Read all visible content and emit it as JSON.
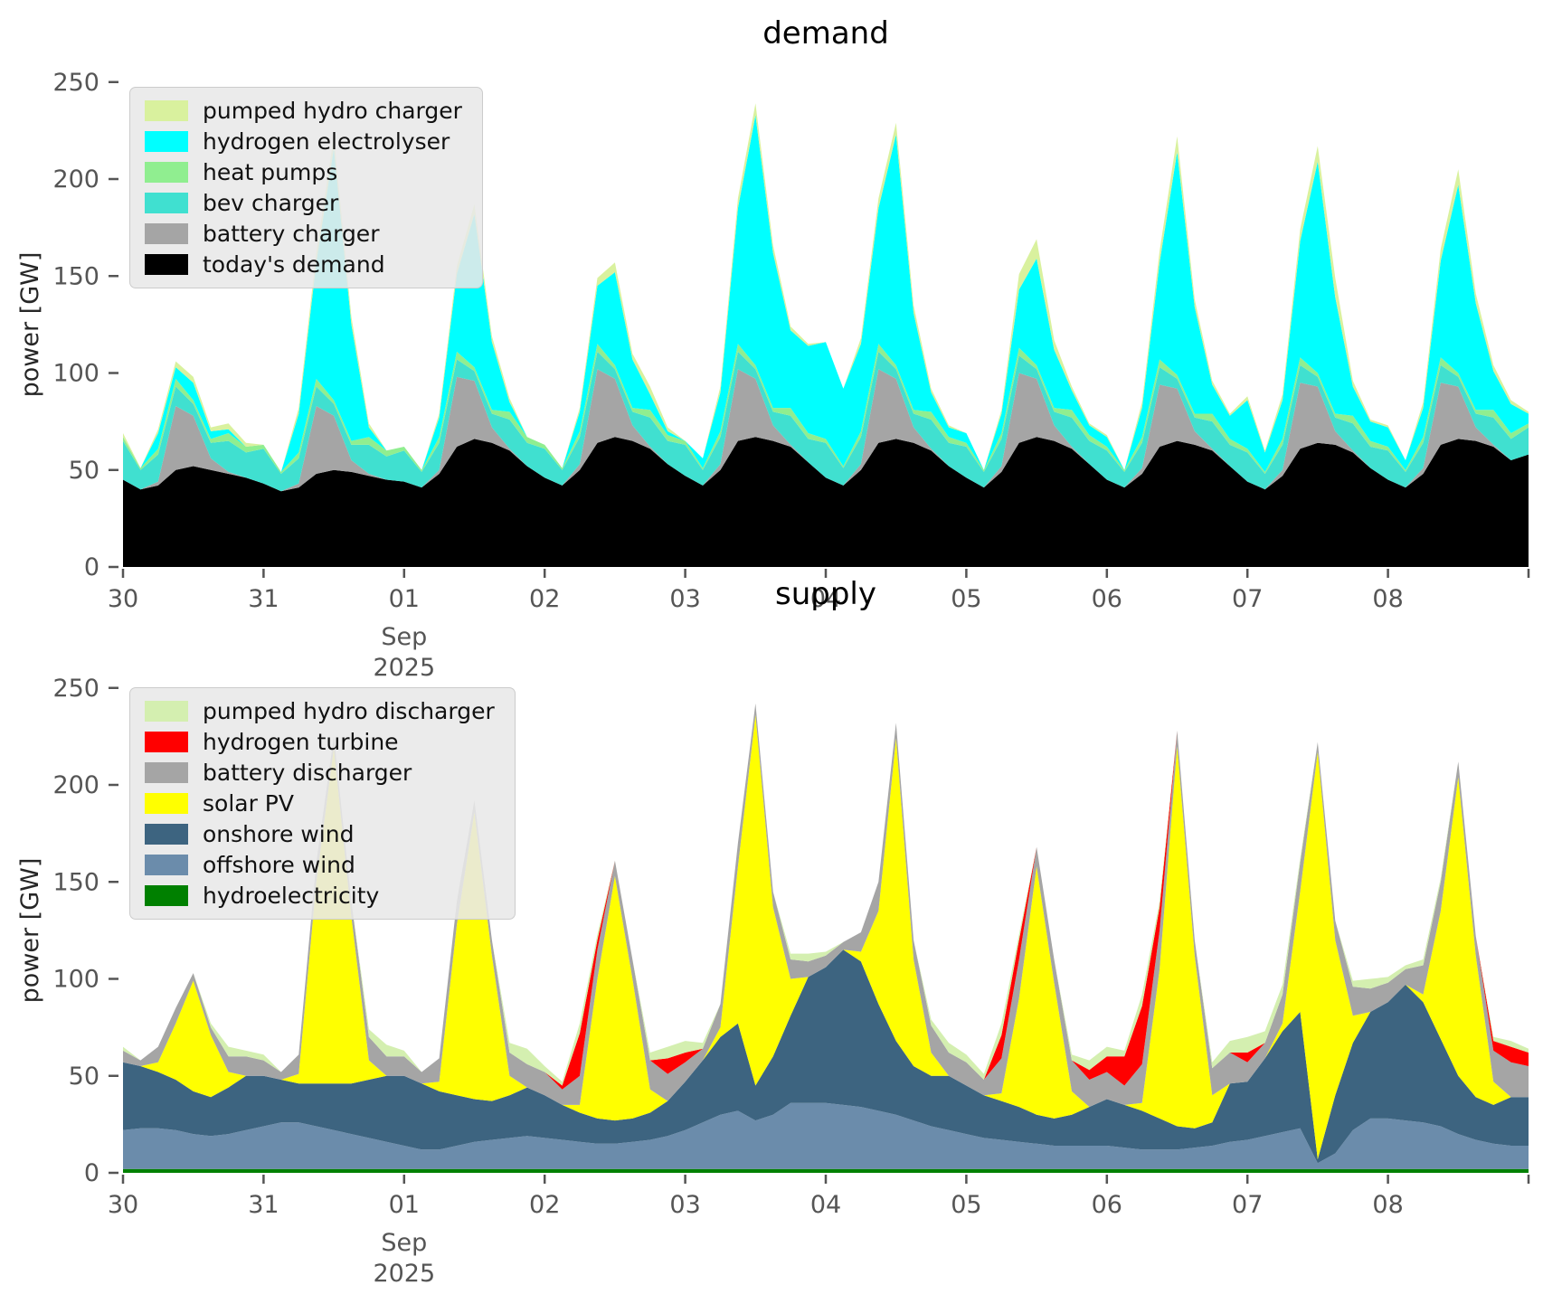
{
  "figure": {
    "background": "#ffffff"
  },
  "chart_data": [
    {
      "type": "area",
      "stacked": true,
      "title": "demand",
      "ylabel": "power [GW]",
      "x_start": "2025-08-30 00:00",
      "x_step_hours": 3,
      "x_tick_labels": [
        "30",
        "31",
        "01",
        "02",
        "03",
        "04",
        "05",
        "06",
        "07",
        "08"
      ],
      "x_axis_sublabel": [
        "Sep",
        "2025"
      ],
      "x_sublabel_under_tick": "01",
      "y_tick_labels": [
        "0",
        "50",
        "100",
        "150",
        "200",
        "250"
      ],
      "ylim": [
        0,
        250
      ],
      "grid": false,
      "legend_position": "upper left",
      "series": [
        {
          "name": "today's demand",
          "color": "#000000",
          "values": [
            45,
            40,
            42,
            50,
            52,
            50,
            48,
            46,
            43,
            39,
            41,
            48,
            50,
            49,
            47,
            45,
            44,
            41,
            48,
            62,
            66,
            64,
            60,
            52,
            46,
            42,
            50,
            64,
            67,
            65,
            61,
            53,
            47,
            42,
            50,
            65,
            67,
            65,
            62,
            54,
            46,
            42,
            50,
            64,
            66,
            64,
            60,
            52,
            46,
            41,
            49,
            64,
            67,
            65,
            61,
            53,
            45,
            41,
            48,
            62,
            65,
            63,
            60,
            52,
            44,
            40,
            47,
            61,
            64,
            63,
            59,
            51,
            45,
            41,
            48,
            63,
            66,
            65,
            62,
            55,
            58
          ]
        },
        {
          "name": "battery charger",
          "color": "#a5a5a5",
          "values": [
            0,
            0,
            2,
            33,
            26,
            6,
            1,
            0,
            0,
            0,
            2,
            35,
            28,
            6,
            1,
            0,
            0,
            0,
            2,
            36,
            30,
            8,
            1,
            0,
            0,
            0,
            3,
            38,
            30,
            8,
            1,
            0,
            0,
            0,
            3,
            37,
            30,
            8,
            1,
            0,
            0,
            0,
            3,
            38,
            31,
            8,
            1,
            0,
            0,
            0,
            3,
            36,
            30,
            8,
            1,
            0,
            0,
            0,
            3,
            32,
            27,
            7,
            1,
            0,
            0,
            0,
            3,
            34,
            29,
            7,
            1,
            0,
            0,
            0,
            3,
            32,
            27,
            7,
            1,
            0,
            0
          ]
        },
        {
          "name": "bev charger",
          "color": "#40e0d0",
          "values": [
            20,
            10,
            14,
            10,
            6,
            8,
            16,
            13,
            18,
            9,
            13,
            10,
            6,
            8,
            15,
            12,
            16,
            8,
            14,
            9,
            5,
            7,
            15,
            12,
            15,
            8,
            14,
            9,
            5,
            7,
            15,
            12,
            16,
            8,
            14,
            9,
            5,
            7,
            15,
            12,
            18,
            9,
            14,
            9,
            5,
            7,
            15,
            12,
            16,
            8,
            14,
            9,
            5,
            7,
            15,
            12,
            15,
            8,
            13,
            9,
            5,
            7,
            14,
            11,
            15,
            8,
            13,
            9,
            5,
            7,
            14,
            11,
            15,
            8,
            13,
            9,
            5,
            7,
            14,
            11,
            14
          ]
        },
        {
          "name": "heat pumps",
          "color": "#90ee90",
          "values": [
            2,
            1,
            3,
            4,
            2,
            2,
            4,
            3,
            2,
            1,
            3,
            4,
            2,
            2,
            4,
            3,
            2,
            1,
            3,
            4,
            2,
            2,
            4,
            3,
            2,
            1,
            3,
            4,
            2,
            2,
            4,
            3,
            2,
            1,
            3,
            4,
            2,
            2,
            4,
            3,
            2,
            1,
            3,
            4,
            2,
            2,
            4,
            3,
            2,
            1,
            3,
            4,
            2,
            2,
            4,
            3,
            2,
            1,
            3,
            4,
            2,
            2,
            4,
            3,
            2,
            1,
            3,
            4,
            2,
            2,
            4,
            3,
            2,
            1,
            3,
            4,
            2,
            2,
            4,
            3,
            2
          ]
        },
        {
          "name": "hydrogen electrolyser",
          "color": "#00ffff",
          "values": [
            0,
            0,
            8,
            6,
            9,
            4,
            2,
            0,
            0,
            0,
            20,
            60,
            130,
            60,
            5,
            0,
            0,
            0,
            10,
            40,
            79,
            35,
            5,
            0,
            0,
            0,
            10,
            30,
            48,
            25,
            8,
            2,
            0,
            5,
            20,
            70,
            129,
            80,
            40,
            45,
            50,
            40,
            45,
            70,
            119,
            50,
            10,
            5,
            5,
            0,
            10,
            30,
            55,
            30,
            10,
            5,
            5,
            0,
            15,
            50,
            115,
            55,
            15,
            12,
            25,
            10,
            20,
            60,
            109,
            60,
            15,
            10,
            10,
            5,
            15,
            50,
            97,
            55,
            20,
            15,
            5
          ]
        },
        {
          "name": "pumped hydro charger",
          "color": "#d9f19e",
          "values": [
            2,
            0,
            2,
            3,
            3,
            2,
            3,
            2,
            0,
            0,
            3,
            5,
            6,
            4,
            2,
            0,
            0,
            0,
            2,
            4,
            5,
            3,
            2,
            0,
            0,
            0,
            2,
            4,
            5,
            3,
            4,
            2,
            0,
            0,
            3,
            5,
            6,
            4,
            2,
            1,
            0,
            0,
            3,
            5,
            6,
            4,
            2,
            1,
            0,
            0,
            2,
            8,
            10,
            5,
            2,
            1,
            1,
            0,
            3,
            6,
            8,
            4,
            2,
            1,
            2,
            1,
            3,
            6,
            8,
            10,
            3,
            1,
            1,
            0,
            3,
            6,
            8,
            5,
            3,
            2,
            1
          ]
        }
      ]
    },
    {
      "type": "area",
      "stacked": true,
      "title": "supply",
      "ylabel": "power [GW]",
      "x_start": "2025-08-30 00:00",
      "x_step_hours": 3,
      "x_tick_labels": [
        "30",
        "31",
        "01",
        "02",
        "03",
        "04",
        "05",
        "06",
        "07",
        "08"
      ],
      "x_axis_sublabel": [
        "Sep",
        "2025"
      ],
      "x_sublabel_under_tick": "01",
      "y_tick_labels": [
        "0",
        "50",
        "100",
        "150",
        "200",
        "250"
      ],
      "ylim": [
        0,
        250
      ],
      "grid": false,
      "legend_position": "upper left",
      "series": [
        {
          "name": "hydroelectricity",
          "color": "#008000",
          "values": [
            2,
            2,
            2,
            2,
            2,
            2,
            2,
            2,
            2,
            2,
            2,
            2,
            2,
            2,
            2,
            2,
            2,
            2,
            2,
            2,
            2,
            2,
            2,
            2,
            2,
            2,
            2,
            2,
            2,
            2,
            2,
            2,
            2,
            2,
            2,
            2,
            2,
            2,
            2,
            2,
            2,
            2,
            2,
            2,
            2,
            2,
            2,
            2,
            2,
            2,
            2,
            2,
            2,
            2,
            2,
            2,
            2,
            2,
            2,
            2,
            2,
            2,
            2,
            2,
            2,
            2,
            2,
            2,
            2,
            2,
            2,
            2,
            2,
            2,
            2,
            2,
            2,
            2,
            2,
            2,
            2
          ]
        },
        {
          "name": "offshore wind",
          "color": "#6b8cab",
          "values": [
            20,
            21,
            21,
            20,
            18,
            17,
            18,
            20,
            22,
            24,
            24,
            22,
            20,
            18,
            16,
            14,
            12,
            10,
            10,
            12,
            14,
            15,
            16,
            17,
            16,
            15,
            14,
            13,
            13,
            14,
            15,
            17,
            20,
            24,
            28,
            30,
            25,
            28,
            34,
            34,
            34,
            33,
            32,
            30,
            28,
            25,
            22,
            20,
            18,
            16,
            15,
            14,
            13,
            12,
            12,
            12,
            12,
            11,
            10,
            10,
            10,
            11,
            12,
            14,
            15,
            17,
            19,
            21,
            3,
            8,
            20,
            26,
            26,
            25,
            24,
            22,
            18,
            15,
            13,
            12,
            12
          ]
        },
        {
          "name": "onshore wind",
          "color": "#3d6480",
          "values": [
            35,
            32,
            29,
            26,
            22,
            20,
            24,
            28,
            26,
            22,
            20,
            22,
            24,
            26,
            30,
            34,
            36,
            34,
            30,
            26,
            22,
            20,
            22,
            25,
            22,
            18,
            15,
            13,
            12,
            12,
            14,
            18,
            25,
            32,
            40,
            45,
            18,
            30,
            45,
            65,
            70,
            80,
            75,
            55,
            38,
            28,
            26,
            28,
            25,
            22,
            20,
            18,
            15,
            14,
            16,
            20,
            24,
            22,
            20,
            16,
            12,
            10,
            12,
            30,
            30,
            40,
            52,
            60,
            2,
            30,
            45,
            55,
            60,
            70,
            62,
            45,
            30,
            22,
            20,
            25,
            25
          ]
        },
        {
          "name": "solar PV",
          "color": "#ffff00",
          "values": [
            0,
            0,
            5,
            29,
            57,
            32,
            8,
            0,
            0,
            0,
            5,
            104,
            173,
            86,
            10,
            0,
            0,
            0,
            5,
            88,
            148,
            75,
            10,
            0,
            0,
            0,
            4,
            72,
            126,
            72,
            12,
            0,
            0,
            0,
            5,
            81,
            191,
            77,
            19,
            0,
            0,
            0,
            5,
            48,
            156,
            55,
            12,
            0,
            0,
            0,
            4,
            56,
            128,
            70,
            12,
            0,
            0,
            0,
            4,
            77,
            196,
            89,
            14,
            0,
            0,
            0,
            4,
            62,
            210,
            80,
            14,
            0,
            0,
            0,
            4,
            66,
            154,
            73,
            12,
            0,
            0
          ]
        },
        {
          "name": "battery discharger",
          "color": "#a5a5a5",
          "values": [
            6,
            3,
            8,
            8,
            4,
            4,
            8,
            10,
            8,
            4,
            10,
            10,
            6,
            8,
            12,
            10,
            10,
            6,
            12,
            12,
            6,
            8,
            12,
            12,
            12,
            8,
            15,
            15,
            8,
            10,
            15,
            14,
            10,
            6,
            12,
            12,
            6,
            8,
            10,
            8,
            6,
            4,
            10,
            15,
            8,
            10,
            14,
            12,
            12,
            8,
            18,
            20,
            10,
            12,
            16,
            14,
            14,
            10,
            20,
            20,
            8,
            8,
            14,
            16,
            10,
            8,
            15,
            15,
            5,
            10,
            15,
            12,
            10,
            8,
            15,
            15,
            8,
            10,
            16,
            18,
            16
          ]
        },
        {
          "name": "hydrogen turbine",
          "color": "#ff0000",
          "values": [
            0,
            0,
            0,
            0,
            0,
            0,
            0,
            0,
            0,
            0,
            0,
            0,
            0,
            0,
            0,
            0,
            0,
            0,
            0,
            0,
            0,
            0,
            0,
            0,
            0,
            2,
            22,
            5,
            0,
            0,
            0,
            8,
            5,
            0,
            0,
            0,
            0,
            0,
            0,
            0,
            0,
            0,
            0,
            0,
            0,
            0,
            0,
            0,
            0,
            0,
            12,
            10,
            0,
            0,
            0,
            5,
            8,
            15,
            30,
            12,
            0,
            0,
            0,
            0,
            5,
            0,
            0,
            0,
            0,
            0,
            0,
            0,
            0,
            0,
            0,
            0,
            0,
            0,
            5,
            8,
            7
          ]
        },
        {
          "name": "pumped hydro discharger",
          "color": "#d4efb0",
          "values": [
            2,
            0,
            0,
            0,
            0,
            2,
            5,
            3,
            3,
            0,
            0,
            0,
            0,
            0,
            4,
            6,
            3,
            0,
            0,
            0,
            0,
            0,
            5,
            8,
            3,
            2,
            5,
            3,
            0,
            0,
            4,
            6,
            6,
            3,
            0,
            0,
            0,
            0,
            3,
            4,
            2,
            0,
            0,
            0,
            0,
            0,
            3,
            5,
            4,
            3,
            6,
            3,
            0,
            0,
            3,
            5,
            5,
            3,
            6,
            3,
            0,
            0,
            3,
            6,
            8,
            6,
            5,
            2,
            0,
            0,
            3,
            5,
            3,
            2,
            3,
            2,
            0,
            0,
            2,
            3,
            2
          ]
        }
      ]
    }
  ]
}
